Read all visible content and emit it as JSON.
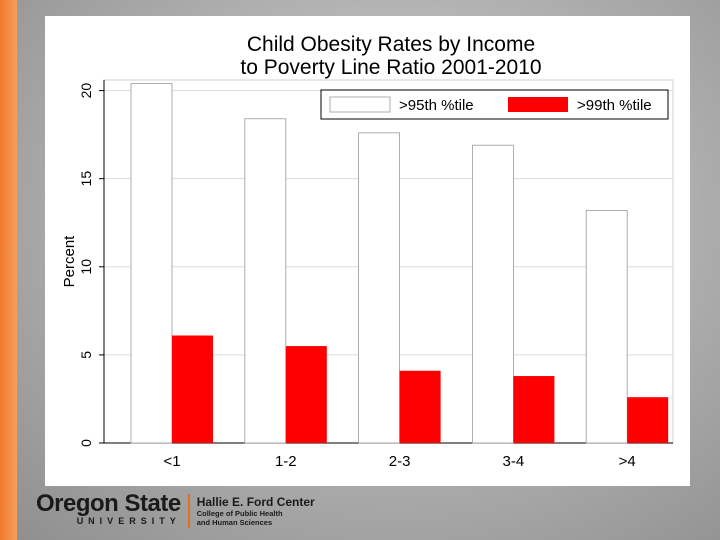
{
  "chart_data": {
    "type": "bar",
    "title_lines": [
      "Child Obesity Rates by Income",
      "to Poverty Line Ratio 2001-2010"
    ],
    "xlabel": "",
    "ylabel": "Percent",
    "categories": [
      "<1",
      "1-2",
      "2-3",
      "3-4",
      ">4"
    ],
    "series": [
      {
        "name": ">95th %tile",
        "values": [
          20.4,
          18.4,
          17.6,
          16.9,
          13.2
        ],
        "color": "#ffffff"
      },
      {
        "name": ">99th %tile",
        "values": [
          6.1,
          5.5,
          4.1,
          3.8,
          2.6
        ],
        "color": "#ff0000"
      }
    ],
    "ylim": [
      0,
      20.6
    ],
    "yticks": [
      0,
      5,
      10,
      15,
      20
    ],
    "grid": true,
    "legend_position": "top-right"
  },
  "logo": {
    "wordmark": "Oregon State",
    "wordmark_sub": "UNIVERSITY",
    "center_name": "Hallie E. Ford Center",
    "center_sub_1": "College of Public Health",
    "center_sub_2": "and Human Sciences"
  }
}
